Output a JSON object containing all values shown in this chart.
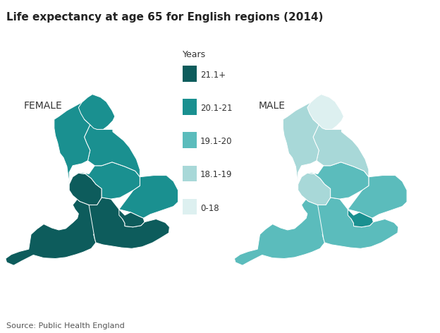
{
  "title": "Life expectancy at age 65 for English regions (2014)",
  "source": "Source: Public Health England",
  "female_label": "FEMALE",
  "male_label": "MALE",
  "legend_title": "Years",
  "legend_labels": [
    "21.1+",
    "20.1-21",
    "19.1-20",
    "18.1-19",
    "0-18"
  ],
  "colors": {
    "21.1+": "#0d5c5c",
    "20.1-21": "#1a9090",
    "19.1-20": "#5bbcbc",
    "18.1-19": "#a8d8d8",
    "0-18": "#ddf0f0"
  },
  "background": "#ffffff",
  "border_color": "#ffffff",
  "female_regions": {
    "North East": "20.1-21",
    "North West": "20.1-21",
    "Yorkshire": "20.1-21",
    "East Midlands": "20.1-21",
    "West Midlands": "21.1+",
    "East of England": "20.1-21",
    "London": "21.1+",
    "South East": "21.1+",
    "South West": "21.1+"
  },
  "male_regions": {
    "North East": "0-18",
    "North West": "18.1-19",
    "Yorkshire": "18.1-19",
    "East Midlands": "19.1-20",
    "West Midlands": "18.1-19",
    "East of England": "19.1-20",
    "London": "20.1-21",
    "South East": "19.1-20",
    "South West": "19.1-20"
  }
}
